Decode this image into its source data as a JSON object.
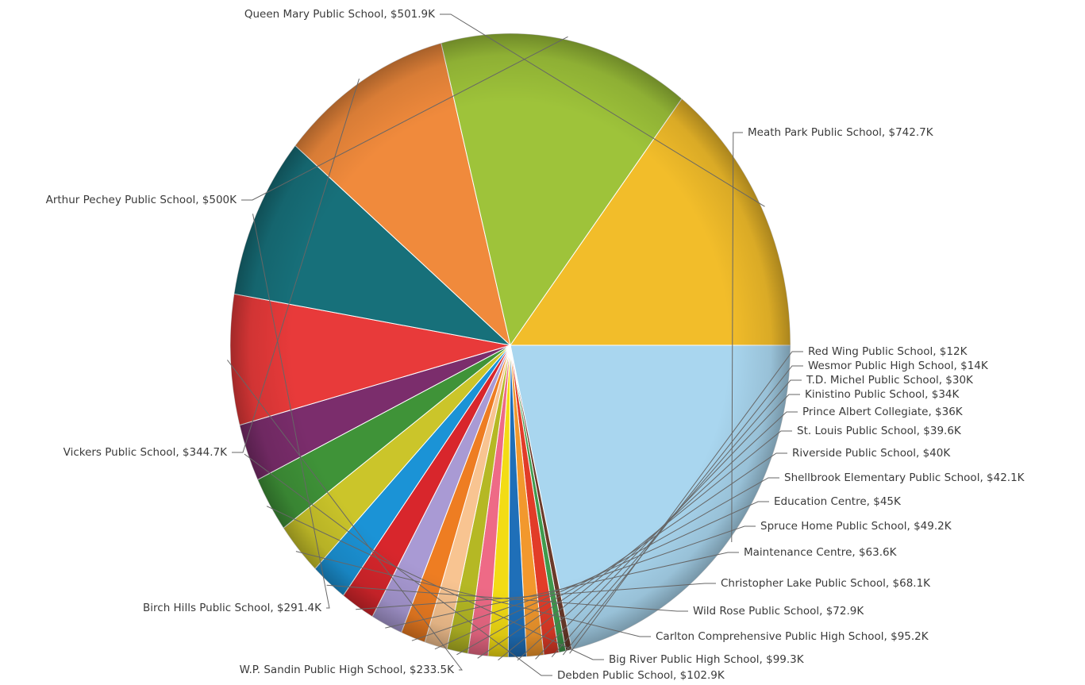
{
  "chart_data": {
    "type": "pie",
    "title": "",
    "slices": [
      {
        "label": "Meath Park Public School, $742.7K",
        "value": 742.7,
        "color": "#a9d6ef"
      },
      {
        "label": "Red Wing Public School, $12K",
        "value": 12,
        "color": "#6b3a2a"
      },
      {
        "label": "Wesmor Public High School, $14K",
        "value": 14,
        "color": "#3f9a4c"
      },
      {
        "label": "T.D. Michel Public School, $30K",
        "value": 30,
        "color": "#e23c28"
      },
      {
        "label": "Kinistino Public School, $34K",
        "value": 34,
        "color": "#f2982d"
      },
      {
        "label": "Prince Albert Collegiate, $36K",
        "value": 36,
        "color": "#1f6fb8"
      },
      {
        "label": "St. Louis Public School, $39.6K",
        "value": 39.6,
        "color": "#f3dc14"
      },
      {
        "label": "Riverside Public School, $40K",
        "value": 40,
        "color": "#ee6a86"
      },
      {
        "label": "Shellbrook Elementary Public School, $42.1K",
        "value": 42.1,
        "color": "#b5b824"
      },
      {
        "label": "Education Centre, $45K",
        "value": 45,
        "color": "#f8c491"
      },
      {
        "label": "Spruce Home Public School, $49.2K",
        "value": 49.2,
        "color": "#ee7d22"
      },
      {
        "label": "Maintenance Centre, $63.6K",
        "value": 63.6,
        "color": "#a99ad4"
      },
      {
        "label": "Christopher Lake Public School, $68.1K",
        "value": 68.1,
        "color": "#d8262c"
      },
      {
        "label": "Wild Rose Public School, $72.9K",
        "value": 72.9,
        "color": "#1b93d6"
      },
      {
        "label": "Carlton Comprehensive Public High School, $95.2K",
        "value": 95.2,
        "color": "#cbc52a"
      },
      {
        "label": "Big River Public High School, $99.3K",
        "value": 99.3,
        "color": "#3f9338"
      },
      {
        "label": "Debden Public School, $102.9K",
        "value": 102.9,
        "color": "#7b2d6c"
      },
      {
        "label": "W.P. Sandin Public High School, $233.5K",
        "value": 233.5,
        "color": "#e83a3a"
      },
      {
        "label": "Birch Hills Public School, $291.4K",
        "value": 291.4,
        "color": "#17707a"
      },
      {
        "label": "Vickers Public School, $344.7K",
        "value": 344.7,
        "color": "#f08a3c"
      },
      {
        "label": "Arthur Pechey Public School, $500K",
        "value": 500,
        "color": "#9ec33a"
      },
      {
        "label": "Queen Mary Public School, $501.9K",
        "value": 501.9,
        "color": "#f2bd2a"
      }
    ]
  }
}
